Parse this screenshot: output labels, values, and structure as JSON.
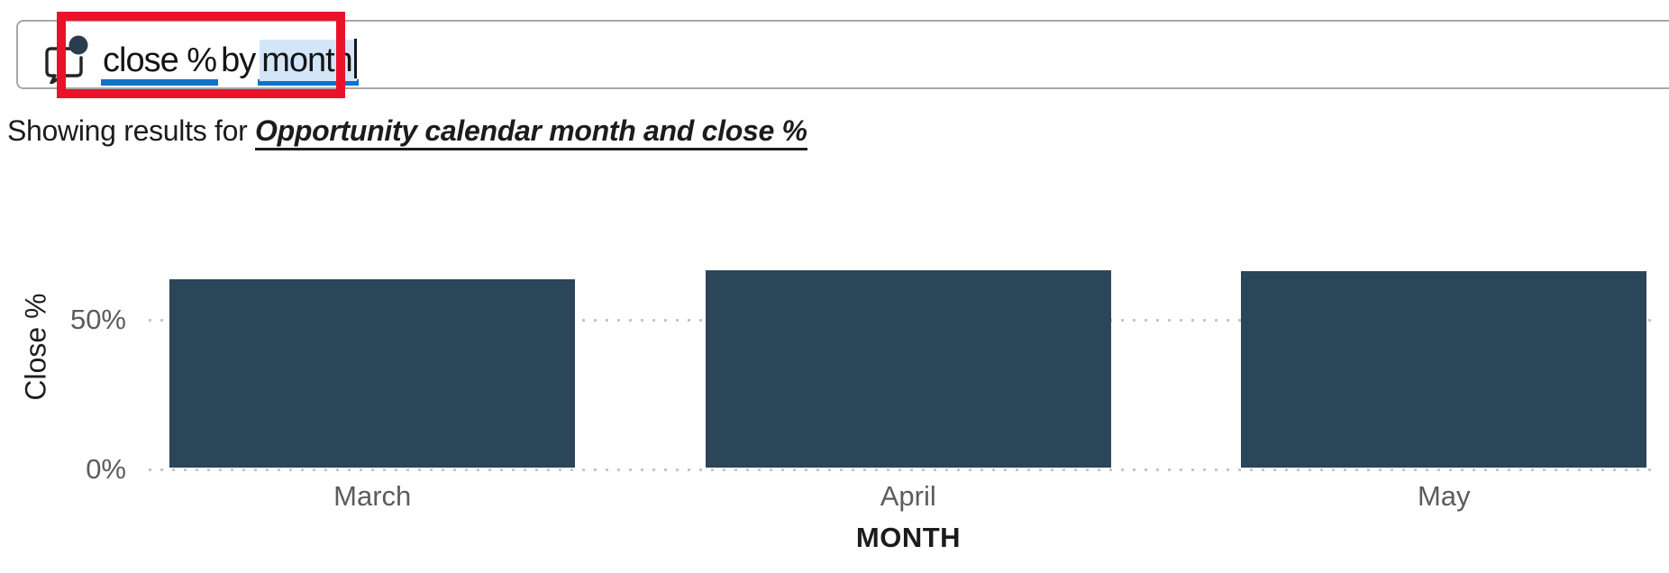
{
  "qna": {
    "full_query": "close % by month",
    "query_tokens": [
      {
        "text": "close %",
        "underlined": true,
        "selected": false
      },
      {
        "text": "by",
        "underlined": false,
        "selected": false
      },
      {
        "text": "month",
        "underlined": true,
        "selected": true
      }
    ],
    "icon": "qna-comment-bubble-icon"
  },
  "annotation": {
    "shape": "red-rectangle-highlight",
    "color": "#e8132b"
  },
  "results_line": {
    "prefix": "Showing results for ",
    "interpretation": "Opportunity calendar month and close %"
  },
  "chart_data": {
    "type": "bar",
    "categories": [
      "March",
      "April",
      "May"
    ],
    "values": [
      63.6,
      66.6,
      66.3
    ],
    "unit": "%",
    "title": "",
    "xlabel": "MONTH",
    "ylabel": "Close %",
    "yticks": [
      {
        "value": 0,
        "label": "0%"
      },
      {
        "value": 50,
        "label": "50%"
      }
    ],
    "ylim": [
      0,
      67
    ],
    "grid": "dotted-horizontal",
    "legend": "none",
    "bar_color": "#2b4559"
  },
  "colors": {
    "term_underline_blue": "#0f72c9",
    "selection_blue": "#d2e6f8",
    "annotation_red": "#e8132b",
    "bar_fill": "#2b4559",
    "axis_label_gray": "#5e5c5a",
    "grid_gray": "#c6c6c6",
    "input_border_gray": "#a8a8a8",
    "icon_dot_slate": "#2b3c4f"
  }
}
